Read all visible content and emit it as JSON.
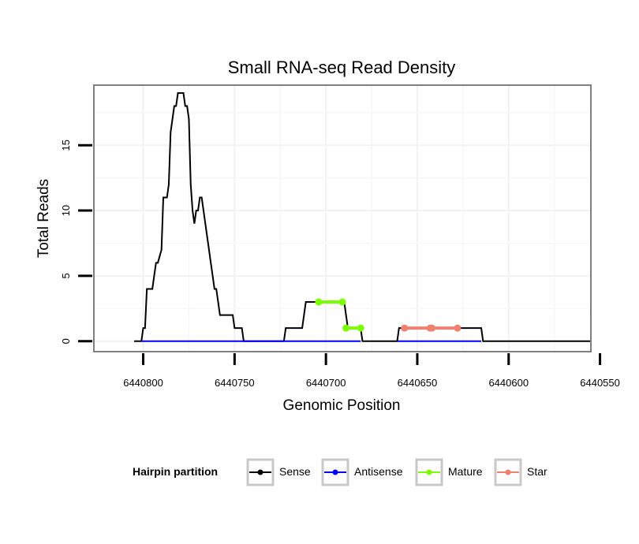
{
  "chart_data": {
    "type": "line",
    "title": "Small RNA-seq Read Density",
    "xlabel": "Genomic Position",
    "ylabel": "Total Reads",
    "xlim": [
      6440555,
      6440827
    ],
    "x_reversed": true,
    "ylim": [
      -0.8,
      19.6
    ],
    "x_ticks": [
      6440800,
      6440750,
      6440700,
      6440650,
      6440600,
      6440550
    ],
    "x_tick_labels": [
      "6440800",
      "6440750",
      "6440700",
      "6440650",
      "6440600",
      "6440550"
    ],
    "y_ticks": [
      0,
      5,
      10,
      15
    ],
    "y_tick_labels": [
      "0",
      "5",
      "10",
      "15"
    ],
    "grid": true,
    "legend": {
      "title": "Hairpin partition",
      "position": "bottom",
      "entries": [
        {
          "label": "Sense",
          "color": "#000000"
        },
        {
          "label": "Antisense",
          "color": "#0000ff"
        },
        {
          "label": "Mature",
          "color": "#7cfc00"
        },
        {
          "label": "Star",
          "color": "#f08070"
        }
      ]
    },
    "series": [
      {
        "name": "Sense",
        "color": "#000000",
        "x": [
          6440805,
          6440801,
          6440800,
          6440799,
          6440798,
          6440795,
          6440794,
          6440793,
          6440792,
          6440790,
          6440789,
          6440788,
          6440787,
          6440786,
          6440785,
          6440784,
          6440783,
          6440782,
          6440781,
          6440780,
          6440779,
          6440778,
          6440777,
          6440776,
          6440775,
          6440774,
          6440773,
          6440772,
          6440771,
          6440770,
          6440769,
          6440768,
          6440767,
          6440766,
          6440765,
          6440764,
          6440763,
          6440762,
          6440761,
          6440760,
          6440759,
          6440758,
          6440757,
          6440756,
          6440755,
          6440751,
          6440750,
          6440749,
          6440746,
          6440745,
          6440723,
          6440722,
          6440721,
          6440713,
          6440712,
          6440711,
          6440710,
          6440709,
          6440708,
          6440707,
          6440706,
          6440705,
          6440690,
          6440689,
          6440688,
          6440681,
          6440680,
          6440661,
          6440660,
          6440659,
          6440658,
          6440642,
          6440615,
          6440614,
          6440613,
          6440555
        ],
        "y": [
          0,
          0,
          1,
          1,
          4,
          4,
          5,
          6,
          6,
          7,
          11,
          11,
          11,
          12,
          16,
          17,
          18,
          18,
          19,
          19,
          19,
          19,
          18,
          18,
          17,
          12,
          10,
          9,
          10,
          10,
          11,
          11,
          10,
          9,
          8,
          7,
          6,
          5,
          4,
          4,
          3,
          2,
          2,
          2,
          2,
          2,
          1,
          1,
          1,
          0,
          0,
          1,
          1,
          1,
          2,
          3,
          3,
          3,
          3,
          3,
          3,
          3,
          3,
          2,
          1,
          1,
          0,
          0,
          1,
          1,
          1,
          1,
          1,
          0,
          0,
          0
        ]
      },
      {
        "name": "Antisense",
        "color": "#0000ff",
        "x": [
          6440801,
          6440681
        ],
        "y": [
          0,
          0
        ]
      },
      {
        "name": "Antisense",
        "color": "#0000ff",
        "x": [
          6440661,
          6440615
        ],
        "y": [
          0,
          0
        ]
      },
      {
        "name": "Mature",
        "color": "#7cfc00",
        "x": [
          6440704,
          6440691
        ],
        "y": [
          3,
          3
        ]
      },
      {
        "name": "Mature",
        "color": "#7cfc00",
        "x": [
          6440689,
          6440681
        ],
        "y": [
          1,
          1
        ]
      },
      {
        "name": "Star",
        "color": "#f08070",
        "x": [
          6440657,
          6440643
        ],
        "y": [
          1,
          1
        ]
      },
      {
        "name": "Star",
        "color": "#f08070",
        "x": [
          6440642,
          6440628
        ],
        "y": [
          1,
          1
        ]
      }
    ]
  }
}
